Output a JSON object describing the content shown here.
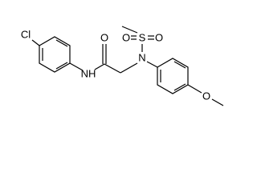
{
  "atoms": {
    "cl": "Cl",
    "nh": "NH",
    "o_carbonyl": "O",
    "n": "N",
    "s": "S",
    "o_sulfonyl_left": "O",
    "o_sulfonyl_right": "O",
    "o_methoxy": "O"
  }
}
